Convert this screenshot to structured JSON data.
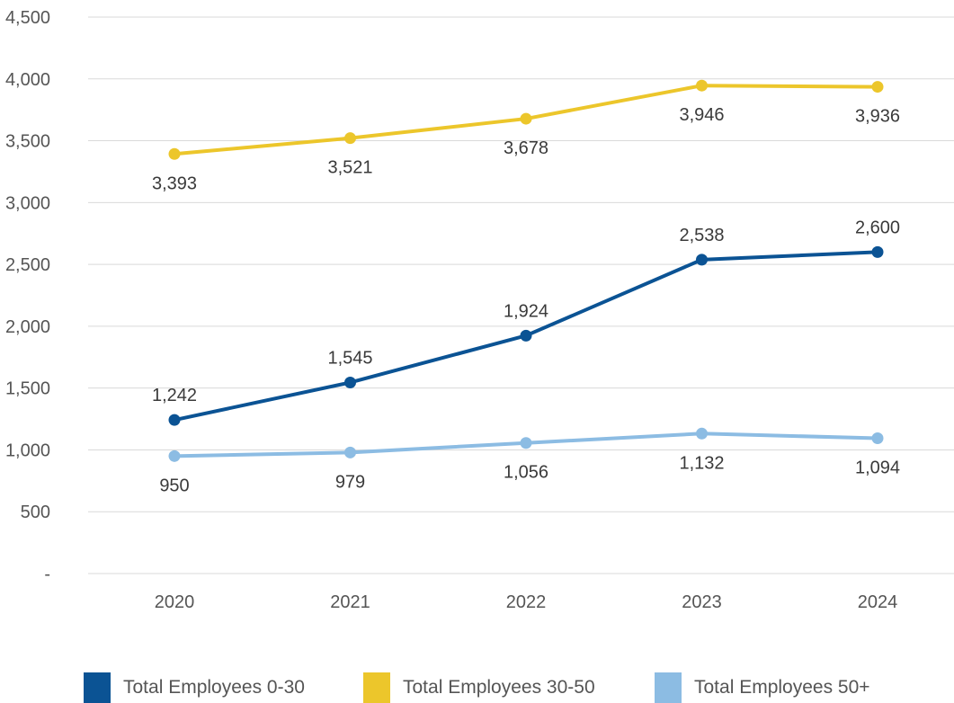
{
  "chart_data": {
    "type": "line",
    "categories": [
      "2020",
      "2021",
      "2022",
      "2023",
      "2024"
    ],
    "series": [
      {
        "name": "Total Employees 0-30",
        "color": "#0b5394",
        "values": [
          1242,
          1545,
          1924,
          2538,
          2600
        ],
        "labels": [
          "1,242",
          "1,545",
          "1,924",
          "2,538",
          "2,600"
        ],
        "label_position": "above"
      },
      {
        "name": "Total Employees 30-50",
        "color": "#ecc62b",
        "values": [
          3393,
          3521,
          3678,
          3946,
          3936
        ],
        "labels": [
          "3,393",
          "3,521",
          "3,678",
          "3,946",
          "3,936"
        ],
        "label_position": "below"
      },
      {
        "name": "Total Employees 50+",
        "color": "#8cbce3",
        "values": [
          950,
          979,
          1056,
          1132,
          1094
        ],
        "labels": [
          "950",
          "979",
          "1,056",
          "1,132",
          "1,094"
        ],
        "label_position": "below"
      }
    ],
    "ylim": [
      0,
      4500
    ],
    "y_ticks": [
      0,
      500,
      1000,
      1500,
      2000,
      2500,
      3000,
      3500,
      4000,
      4500
    ],
    "y_tick_labels": [
      "-",
      "500",
      "1,000",
      "1,500",
      "2,000",
      "2,500",
      "3,000",
      "3,500",
      "4,000",
      "4,500"
    ],
    "grid": true,
    "legend_position": "bottom"
  }
}
